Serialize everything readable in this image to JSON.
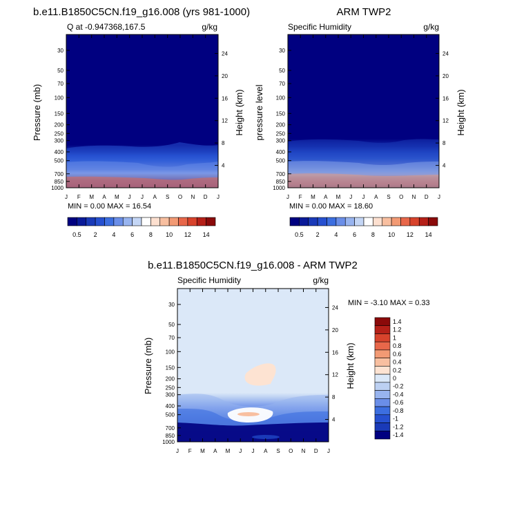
{
  "panels": [
    {
      "id": "model",
      "title": "b.e11.B1850C5CN.f19_g16.008 (yrs 981-1000)",
      "subtitle_left": "Q at -0.947368,167.5",
      "subtitle_right": "g/kg",
      "left_axis_label": "Pressure (mb)",
      "right_axis_label": "Height (km)",
      "minmax": "MIN =   0.00 MAX =  16.54"
    },
    {
      "id": "obs",
      "title": "ARM TWP2",
      "subtitle_left": "Specific Humidity",
      "subtitle_right": "g/kg",
      "left_axis_label": "pressure level",
      "right_axis_label": "Height (km)",
      "minmax": "MIN =   0.00 MAX =  18.60"
    },
    {
      "id": "diff",
      "title": "b.e11.B1850C5CN.f19_g16.008 - ARM TWP2",
      "subtitle_left": "Specific Humidity",
      "subtitle_right": "g/kg",
      "left_axis_label": "Pressure (mb)",
      "right_axis_label": "Height (km)",
      "minmax": "MIN =  -3.10 MAX =   0.33"
    }
  ],
  "chart_data": [
    {
      "type": "heatmap",
      "title": "b.e11.B1850C5CN.f19_g16.008 (yrs 981-1000)",
      "x_categories": [
        "J",
        "F",
        "M",
        "A",
        "M",
        "J",
        "J",
        "A",
        "S",
        "O",
        "N",
        "D",
        "J"
      ],
      "y_left_ticks": [
        30,
        50,
        70,
        100,
        150,
        200,
        250,
        300,
        400,
        500,
        700,
        850,
        1000
      ],
      "y_right_ticks": [
        24,
        20,
        16,
        12,
        8,
        4
      ],
      "y_scale": "log-pressure",
      "colorbar_labels": [
        "0.5",
        "2",
        "4",
        "6",
        "8",
        "10",
        "12",
        "14"
      ],
      "min": 0.0,
      "max": 16.54
    },
    {
      "type": "heatmap",
      "title": "ARM TWP2",
      "x_categories": [
        "J",
        "F",
        "M",
        "A",
        "M",
        "J",
        "J",
        "A",
        "S",
        "O",
        "N",
        "D",
        "J"
      ],
      "y_left_ticks": [
        30,
        50,
        70,
        100,
        150,
        200,
        250,
        300,
        400,
        500,
        700,
        850,
        1000
      ],
      "y_right_ticks": [
        24,
        20,
        16,
        12,
        8,
        4
      ],
      "y_scale": "log-pressure",
      "colorbar_labels": [
        "0.5",
        "2",
        "4",
        "6",
        "8",
        "10",
        "12",
        "14"
      ],
      "min": 0.0,
      "max": 18.6
    },
    {
      "type": "heatmap",
      "title": "b.e11.B1850C5CN.f19_g16.008 - ARM TWP2",
      "x_categories": [
        "J",
        "F",
        "M",
        "A",
        "M",
        "J",
        "J",
        "A",
        "S",
        "O",
        "N",
        "D",
        "J"
      ],
      "y_left_ticks": [
        30,
        50,
        70,
        100,
        150,
        200,
        250,
        300,
        400,
        500,
        700,
        850,
        1000
      ],
      "y_right_ticks": [
        24,
        20,
        16,
        12,
        8,
        4
      ],
      "y_scale": "log-pressure",
      "colorbar_labels": [
        "1.4",
        "1.2",
        "1",
        "0.8",
        "0.6",
        "0.4",
        "0.2",
        "0",
        "-0.2",
        "-0.4",
        "-0.6",
        "-0.8",
        "-1",
        "-1.2",
        "-1.4"
      ],
      "min": -3.1,
      "max": 0.33
    }
  ],
  "colors": {
    "hbar": [
      "#000080",
      "#0a1a99",
      "#1a3ab8",
      "#2650d0",
      "#3c6ee0",
      "#6a8ee8",
      "#98b4ef",
      "#c4d6f5",
      "#ffffff",
      "#fde0d0",
      "#f8bfa0",
      "#f29a74",
      "#e8674a",
      "#d8432c",
      "#b52018",
      "#8a0a0a"
    ],
    "vbar_top_to_bottom": [
      "#8b0a0a",
      "#b52018",
      "#d8432c",
      "#e8674a",
      "#f29a74",
      "#f8bfa0",
      "#fde3d2",
      "#dbe8f8",
      "#bcd0f2",
      "#98b4ef",
      "#6a8ee8",
      "#3c6ee0",
      "#2650d0",
      "#1a3ab8",
      "#000080"
    ]
  }
}
